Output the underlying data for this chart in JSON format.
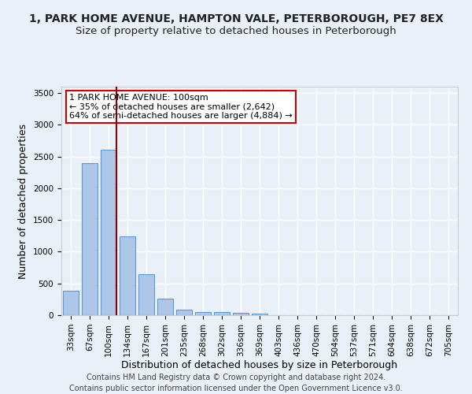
{
  "title": "1, PARK HOME AVENUE, HAMPTON VALE, PETERBOROUGH, PE7 8EX",
  "subtitle": "Size of property relative to detached houses in Peterborough",
  "xlabel": "Distribution of detached houses by size in Peterborough",
  "ylabel": "Number of detached properties",
  "footer_line1": "Contains HM Land Registry data © Crown copyright and database right 2024.",
  "footer_line2": "Contains public sector information licensed under the Open Government Licence v3.0.",
  "categories": [
    "33sqm",
    "67sqm",
    "100sqm",
    "134sqm",
    "167sqm",
    "201sqm",
    "235sqm",
    "268sqm",
    "302sqm",
    "336sqm",
    "369sqm",
    "403sqm",
    "436sqm",
    "470sqm",
    "504sqm",
    "537sqm",
    "571sqm",
    "604sqm",
    "638sqm",
    "672sqm",
    "705sqm"
  ],
  "values": [
    390,
    2400,
    2610,
    1240,
    640,
    255,
    90,
    55,
    50,
    35,
    30,
    0,
    0,
    0,
    0,
    0,
    0,
    0,
    0,
    0,
    0
  ],
  "bar_color": "#aec6e8",
  "bar_edge_color": "#5b9bd5",
  "highlight_index": 2,
  "highlight_line_color": "#8b0000",
  "annotation_text": "1 PARK HOME AVENUE: 100sqm\n← 35% of detached houses are smaller (2,642)\n64% of semi-detached houses are larger (4,884) →",
  "annotation_box_color": "#ffffff",
  "annotation_box_edge_color": "#cc0000",
  "ylim": [
    0,
    3600
  ],
  "yticks": [
    0,
    500,
    1000,
    1500,
    2000,
    2500,
    3000,
    3500
  ],
  "background_color": "#eaf0f8",
  "plot_bg_color": "#eaf0f8",
  "grid_color": "#ffffff",
  "title_fontsize": 10,
  "subtitle_fontsize": 9.5,
  "axis_label_fontsize": 9,
  "tick_fontsize": 7.5,
  "footer_fontsize": 7,
  "annotation_fontsize": 8
}
